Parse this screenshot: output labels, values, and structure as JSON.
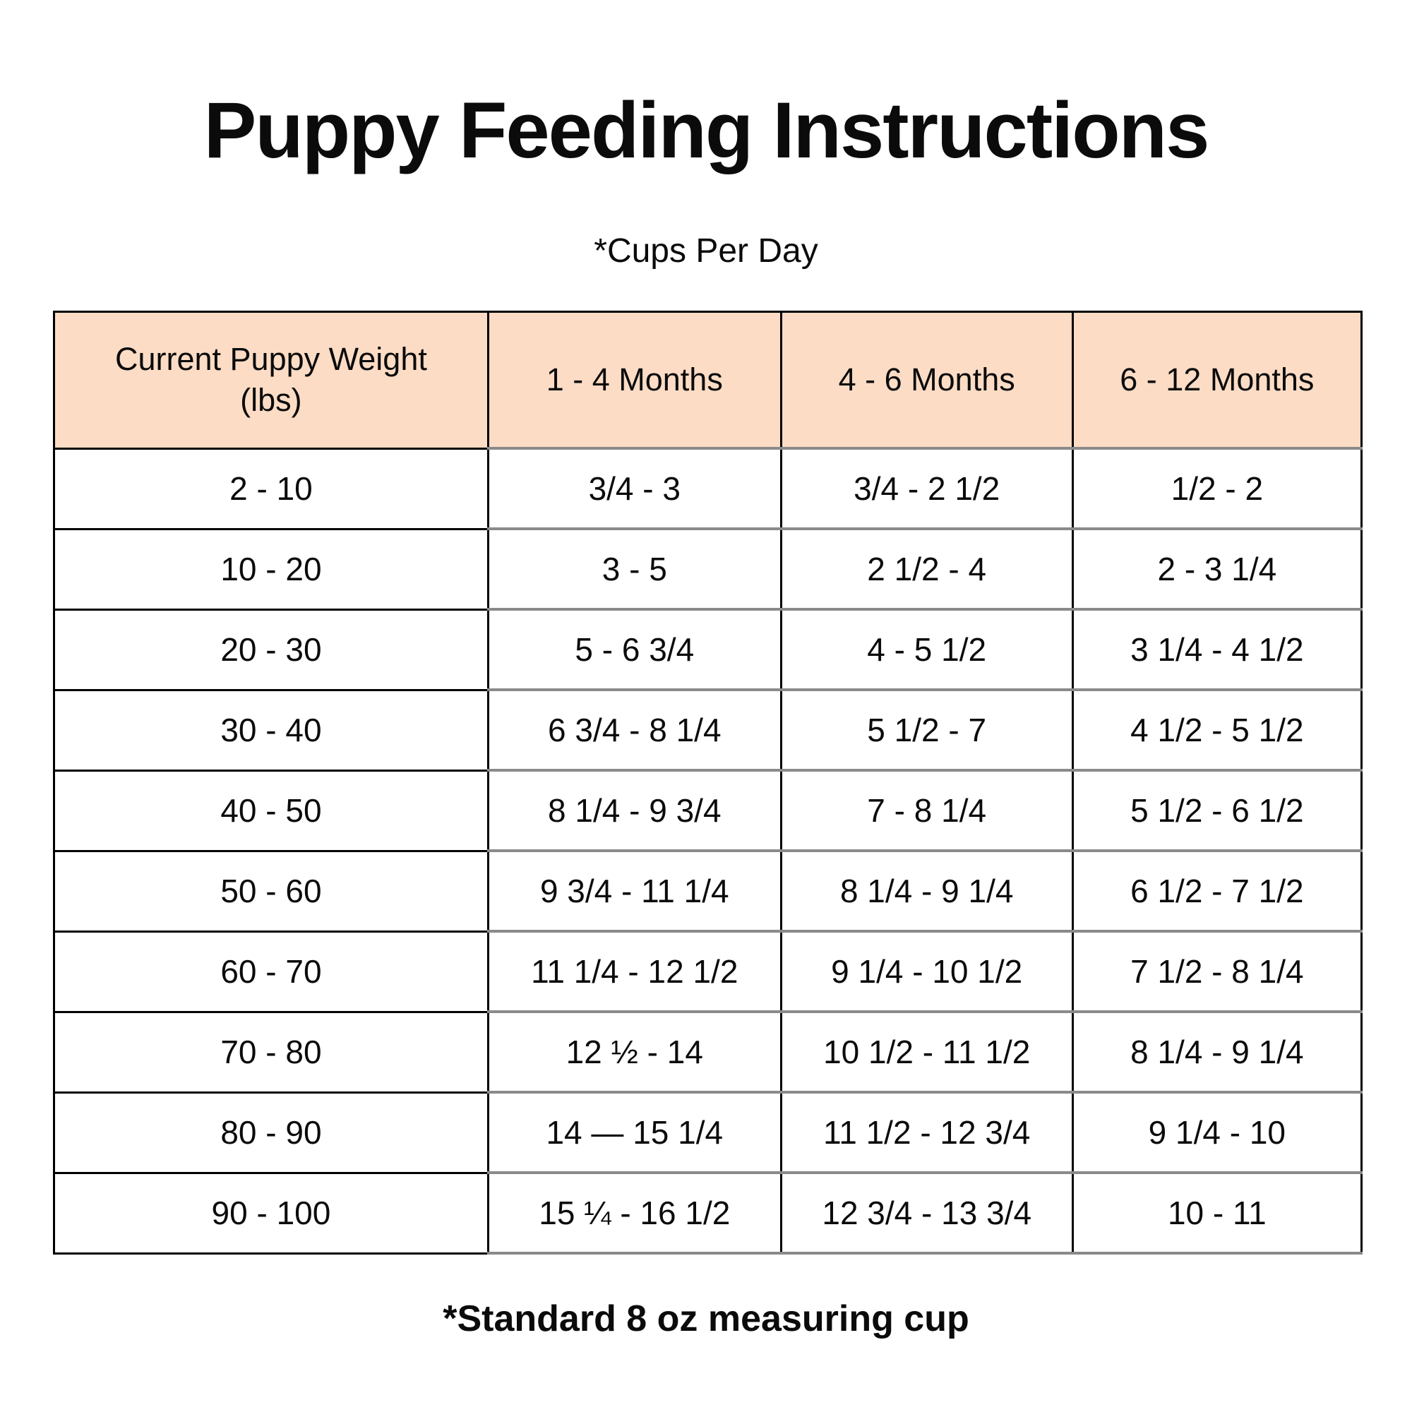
{
  "page": {
    "title": "Puppy Feeding Instructions",
    "subtitle": "*Cups Per Day",
    "footnote": "*Standard 8 oz measuring cup"
  },
  "colors": {
    "header_bg": "#fcdcc5",
    "border_dark": "#000000",
    "border_gray": "#8a8a8a",
    "text": "#0b0b0b",
    "background": "#ffffff"
  },
  "table": {
    "columns": [
      "Current Puppy Weight (lbs)",
      "1 - 4 Months",
      "4 - 6 Months",
      "6 - 12 Months"
    ],
    "rows": [
      [
        "2 - 10",
        "3/4 - 3",
        "3/4 - 2 1/2",
        "1/2 - 2"
      ],
      [
        "10 - 20",
        "3 - 5",
        "2 1/2 - 4",
        "2 - 3 1/4"
      ],
      [
        "20 - 30",
        "5 - 6 3/4",
        "4 - 5 1/2",
        "3 1/4 - 4 1/2"
      ],
      [
        "30 - 40",
        "6 3/4 - 8 1/4",
        "5 1/2 - 7",
        "4 1/2 - 5 1/2"
      ],
      [
        "40 - 50",
        "8 1/4 - 9 3/4",
        "7 - 8 1/4",
        "5 1/2 - 6 1/2"
      ],
      [
        "50 - 60",
        "9 3/4 - 11 1/4",
        "8 1/4 - 9 1/4",
        "6 1/2 - 7 1/2"
      ],
      [
        "60 - 70",
        "11 1/4 - 12 1/2",
        "9 1/4 - 10 1/2",
        "7 1/2 - 8 1/4"
      ],
      [
        "70 - 80",
        "12 ½ - 14",
        "10 1/2 - 11 1/2",
        "8 1/4 - 9 1/4"
      ],
      [
        "80 - 90",
        "14 — 15 1/4",
        "11 1/2 - 12 3/4",
        "9 1/4 - 10"
      ],
      [
        "90 - 100",
        "15 ¼ - 16 1/2",
        "12 3/4 - 13 3/4",
        "10 - 11"
      ]
    ]
  }
}
